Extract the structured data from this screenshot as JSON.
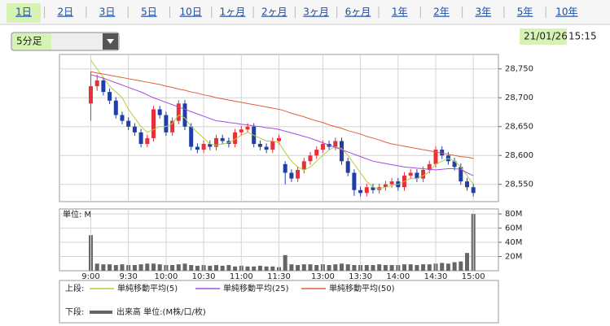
{
  "tabs": [
    "1日",
    "2日",
    "3日",
    "5日",
    "10日",
    "1ヶ月",
    "2ヶ月",
    "3ヶ月",
    "6ヶ月",
    "1年",
    "2年",
    "3年",
    "5年",
    "10年"
  ],
  "dropdown": "5分足",
  "date": "21/01/26",
  "time": "15:15",
  "chart_data": [
    {
      "type": "candlestick",
      "legend_label": "上段:",
      "up_color": "#e8303a",
      "down_color": "#1f3ea8",
      "x": [
        0,
        1,
        2,
        3,
        4,
        5,
        6,
        7,
        8,
        9,
        10,
        11,
        12,
        13,
        14,
        15,
        16,
        17,
        18,
        19,
        20,
        21,
        22,
        23,
        24,
        25,
        26,
        27,
        28,
        29,
        30,
        31,
        32,
        33,
        34,
        35,
        36,
        37,
        38,
        39,
        40,
        41,
        42,
        43,
        44,
        45,
        46,
        47,
        48,
        49,
        50,
        51,
        52,
        53,
        54,
        55,
        56,
        57,
        58,
        59,
        60,
        61
      ],
      "open": [
        28690,
        28720,
        28730,
        28710,
        28695,
        28670,
        28660,
        28650,
        28640,
        28620,
        28630,
        28680,
        28670,
        28640,
        28660,
        28690,
        28650,
        28615,
        28610,
        28620,
        28615,
        28630,
        28625,
        28620,
        28640,
        28645,
        28650,
        28620,
        28615,
        28610,
        28625,
        28585,
        28570,
        28560,
        28575,
        28590,
        28600,
        28610,
        28620,
        28615,
        28625,
        28590,
        28570,
        28540,
        28535,
        28545,
        28540,
        28545,
        28550,
        28555,
        28545,
        28565,
        28570,
        28560,
        28575,
        28585,
        28610,
        28600,
        28590,
        28580,
        28555,
        28545
      ],
      "high": [
        28745,
        28740,
        28736,
        28716,
        28701,
        28676,
        28666,
        28656,
        28646,
        28636,
        28686,
        28686,
        28676,
        28666,
        28696,
        28696,
        28656,
        28621,
        28626,
        28626,
        28636,
        28636,
        28631,
        28646,
        28651,
        28656,
        28656,
        28626,
        28621,
        28631,
        28636,
        28590,
        28576,
        28581,
        28596,
        28606,
        28616,
        28626,
        28626,
        28631,
        28631,
        28596,
        28576,
        28546,
        28551,
        28551,
        28551,
        28556,
        28561,
        28561,
        28571,
        28576,
        28576,
        28581,
        28591,
        28616,
        28616,
        28606,
        28596,
        28586,
        28561,
        28551
      ],
      "low": [
        28660,
        28712,
        28704,
        28689,
        28664,
        28654,
        28644,
        28634,
        28614,
        28614,
        28624,
        28664,
        28634,
        28634,
        28654,
        28644,
        28609,
        28604,
        28604,
        28609,
        28609,
        28619,
        28614,
        28614,
        28634,
        28639,
        28614,
        28609,
        28604,
        28604,
        28619,
        28550,
        28554,
        28554,
        28569,
        28584,
        28594,
        28604,
        28609,
        28609,
        28584,
        28564,
        28530,
        28529,
        28529,
        28534,
        28534,
        28539,
        28544,
        28539,
        28539,
        28559,
        28554,
        28554,
        28569,
        28579,
        28594,
        28584,
        28574,
        28549,
        28539,
        28529
      ],
      "close": [
        28720,
        28730,
        28710,
        28695,
        28670,
        28660,
        28650,
        28640,
        28620,
        28630,
        28680,
        28670,
        28640,
        28660,
        28690,
        28650,
        28615,
        28610,
        28620,
        28615,
        28630,
        28625,
        28620,
        28640,
        28645,
        28650,
        28620,
        28615,
        28610,
        28625,
        28630,
        28570,
        28560,
        28575,
        28590,
        28600,
        28610,
        28620,
        28615,
        28625,
        28590,
        28570,
        28540,
        28535,
        28545,
        28540,
        28545,
        28550,
        28555,
        28545,
        28565,
        28570,
        28560,
        28575,
        28585,
        28610,
        28600,
        28590,
        28580,
        28555,
        28545,
        28535
      ],
      "series": [
        {
          "name": "単純移動平均(5)",
          "color": "#b5cc3c",
          "values": [
            28765,
            28750,
            28735,
            28720,
            28710,
            28700,
            28680,
            28665,
            28650,
            28640,
            28645,
            28650,
            28650,
            28655,
            28670,
            28665,
            28650,
            28640,
            28630,
            28620,
            28618,
            28620,
            28622,
            28628,
            28635,
            28640,
            28635,
            28630,
            28625,
            28625,
            28622,
            28605,
            28590,
            28580,
            28575,
            28580,
            28590,
            28600,
            28610,
            28615,
            28612,
            28600,
            28585,
            28570,
            28555,
            28545,
            28542,
            28545,
            28548,
            28550,
            28555,
            28560,
            28560,
            28565,
            28572,
            28585,
            28590,
            28595,
            28590,
            28580,
            28565,
            28550
          ]
        },
        {
          "name": "単純移動平均(25)",
          "color": "#a64de0",
          "values": [
            28740,
            28737,
            28734,
            28730,
            28726,
            28722,
            28718,
            28714,
            28710,
            28705,
            28700,
            28696,
            28692,
            28688,
            28684,
            28680,
            28676,
            28672,
            28668,
            28664,
            28660,
            28659,
            28657,
            28656,
            28654,
            28653,
            28651,
            28650,
            28648,
            28647,
            28645,
            28642,
            28639,
            28636,
            28633,
            28630,
            28626,
            28622,
            28618,
            28614,
            28610,
            28606,
            28602,
            28598,
            28594,
            28590,
            28588,
            28586,
            28584,
            28582,
            28580,
            28579,
            28578,
            28577,
            28576,
            28575,
            28576,
            28577,
            28577,
            28576,
            28570,
            28565
          ]
        },
        {
          "name": "単純移動平均(50)",
          "color": "#e0603a",
          "values": [
            28745,
            28743,
            28741,
            28739,
            28737,
            28735,
            28733,
            28731,
            28729,
            28727,
            28725,
            28723,
            28720,
            28718,
            28715,
            28713,
            28710,
            28708,
            28705,
            28703,
            28700,
            28698,
            28696,
            28694,
            28692,
            28690,
            28688,
            28686,
            28684,
            28682,
            28680,
            28677,
            28673,
            28670,
            28667,
            28663,
            28660,
            28657,
            28653,
            28650,
            28647,
            28643,
            28640,
            28637,
            28633,
            28630,
            28627,
            28623,
            28620,
            28618,
            28616,
            28614,
            28612,
            28610,
            28608,
            28606,
            28604,
            28602,
            28600,
            28598,
            28597,
            28595
          ]
        }
      ],
      "xlim": [
        -5,
        65
      ],
      "ylim": [
        28520,
        28775
      ],
      "yticks": [
        {
          "value": 28550,
          "label": "28,550"
        },
        {
          "value": 28600,
          "label": "28,600"
        },
        {
          "value": 28650,
          "label": "28,650"
        },
        {
          "value": 28700,
          "label": "28,700"
        },
        {
          "value": 28750,
          "label": "28,750"
        }
      ],
      "xticks": [
        {
          "value": 0,
          "label": "9:00"
        },
        {
          "value": 6,
          "label": "9:30"
        },
        {
          "value": 12,
          "label": "10:00"
        },
        {
          "value": 18,
          "label": "10:30"
        },
        {
          "value": 24,
          "label": "11:00"
        },
        {
          "value": 30,
          "label": "11:30"
        },
        {
          "value": 37,
          "label": "13:00"
        },
        {
          "value": 43,
          "label": "13:30"
        },
        {
          "value": 49,
          "label": "14:00"
        },
        {
          "value": 55,
          "label": "14:30"
        },
        {
          "value": 61,
          "label": "15:00"
        }
      ],
      "grid": true
    },
    {
      "type": "bar",
      "legend_label": "下段:",
      "unit_label": "単位: M",
      "x": [
        0,
        1,
        2,
        3,
        4,
        5,
        6,
        7,
        8,
        9,
        10,
        11,
        12,
        13,
        14,
        15,
        16,
        17,
        18,
        19,
        20,
        21,
        22,
        23,
        24,
        25,
        26,
        27,
        28,
        29,
        30,
        31,
        32,
        33,
        34,
        35,
        36,
        37,
        38,
        39,
        40,
        41,
        42,
        43,
        44,
        45,
        46,
        47,
        48,
        49,
        50,
        51,
        52,
        53,
        54,
        55,
        56,
        57,
        58,
        59,
        60,
        61
      ],
      "series": [
        {
          "name": "出来高 単位:(M株/口/枚)",
          "color": "#666666",
          "values": [
            50,
            10,
            9,
            9,
            8,
            9,
            8,
            8,
            9,
            10,
            10,
            9,
            8,
            8,
            9,
            10,
            8,
            7,
            8,
            7,
            8,
            7,
            8,
            6,
            7,
            6,
            6,
            7,
            6,
            6,
            5,
            22,
            9,
            8,
            9,
            9,
            8,
            9,
            8,
            9,
            10,
            9,
            8,
            8,
            8,
            8,
            9,
            8,
            8,
            8,
            9,
            9,
            8,
            9,
            9,
            10,
            11,
            10,
            12,
            13,
            25,
            80
          ]
        }
      ],
      "xlim": [
        -5,
        65
      ],
      "ylim": [
        0,
        87
      ],
      "yticks": [
        {
          "value": 20,
          "label": "20M"
        },
        {
          "value": 40,
          "label": "40M"
        },
        {
          "value": 60,
          "label": "60M"
        },
        {
          "value": 80,
          "label": "80M"
        }
      ],
      "grid": true
    }
  ]
}
